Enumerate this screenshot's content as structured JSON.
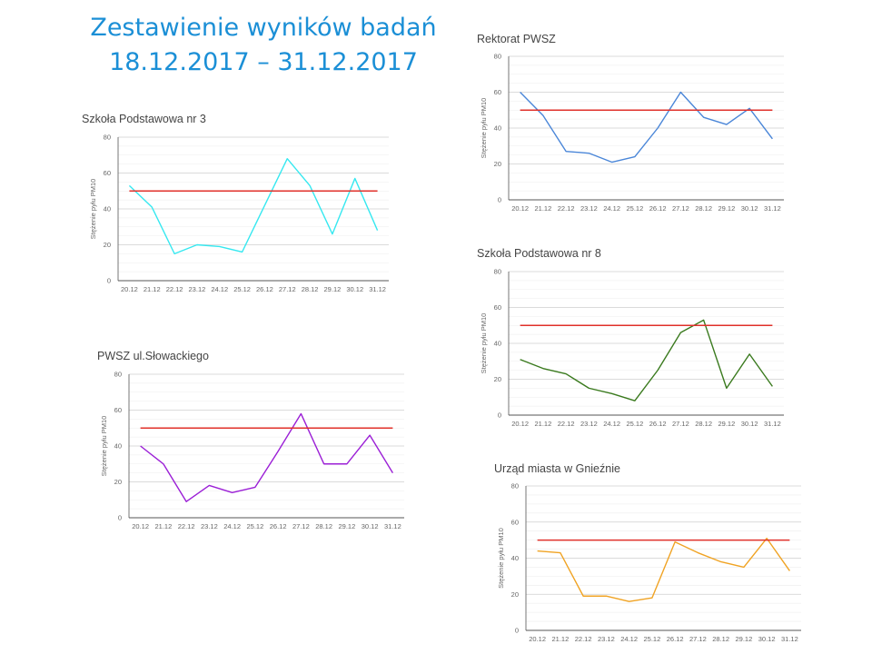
{
  "page": {
    "title_line1": "Zestawienie wyników badań",
    "title_line2": "18.12.2017 – 31.12.2017"
  },
  "chart_data": [
    {
      "type": "line",
      "title": "Szkoła Podstawowa nr 3",
      "ylabel": "Stężenie pyłu PM10",
      "categories": [
        "20.12",
        "21.12",
        "22.12",
        "23.12",
        "24.12",
        "25.12",
        "26.12",
        "27.12",
        "28.12",
        "29.12",
        "30.12",
        "31.12"
      ],
      "yticks": [
        0,
        20,
        40,
        60,
        80
      ],
      "ylim": [
        0,
        80
      ],
      "grid": true,
      "series": [
        {
          "values": [
            53,
            41,
            15,
            20,
            19,
            16,
            42,
            68,
            53,
            26,
            57,
            28
          ],
          "color": "#36e8f0"
        },
        {
          "values": [
            50,
            50,
            50,
            50,
            50,
            50,
            50,
            50,
            50,
            50,
            50,
            50
          ],
          "color": "#e0302a"
        }
      ]
    },
    {
      "type": "line",
      "title": "Rektorat PWSZ",
      "ylabel": "Stężenie pyłu PM10",
      "categories": [
        "20.12",
        "21.12",
        "22.12",
        "23.12",
        "24.12",
        "25.12",
        "26.12",
        "27.12",
        "28.12",
        "29.12",
        "30.12",
        "31.12"
      ],
      "yticks": [
        0,
        20,
        40,
        60,
        80
      ],
      "ylim": [
        0,
        80
      ],
      "grid": true,
      "series": [
        {
          "values": [
            60,
            47,
            27,
            26,
            21,
            24,
            40,
            60,
            46,
            42,
            51,
            34
          ],
          "color": "#4a86d8"
        },
        {
          "values": [
            50,
            50,
            50,
            50,
            50,
            50,
            50,
            50,
            50,
            50,
            50,
            50
          ],
          "color": "#e0302a"
        }
      ]
    },
    {
      "type": "line",
      "title": "Szkoła Podstawowa nr 8",
      "ylabel": "Stężenie pyłu PM10",
      "categories": [
        "20.12",
        "21.12",
        "22.12",
        "23.12",
        "24.12",
        "25.12",
        "26.12",
        "27.12",
        "28.12",
        "29.12",
        "30.12",
        "31.12"
      ],
      "yticks": [
        0,
        20,
        40,
        60,
        80
      ],
      "ylim": [
        0,
        80
      ],
      "grid": true,
      "series": [
        {
          "values": [
            31,
            26,
            23,
            15,
            12,
            8,
            25,
            46,
            53,
            15,
            34,
            16
          ],
          "color": "#3a7a1e"
        },
        {
          "values": [
            50,
            50,
            50,
            50,
            50,
            50,
            50,
            50,
            50,
            50,
            50,
            50
          ],
          "color": "#e0302a"
        }
      ]
    },
    {
      "type": "line",
      "title": "PWSZ ul.Słowackiego",
      "ylabel": "Stężenie pyłu PM10",
      "categories": [
        "20.12",
        "21.12",
        "22.12",
        "23.12",
        "24.12",
        "25.12",
        "26.12",
        "27.12",
        "28.12",
        "29.12",
        "30.12",
        "31.12"
      ],
      "yticks": [
        0,
        20,
        40,
        60,
        80
      ],
      "ylim": [
        0,
        80
      ],
      "grid": true,
      "series": [
        {
          "values": [
            40,
            30,
            9,
            18,
            14,
            17,
            37,
            58,
            30,
            30,
            46,
            25
          ],
          "color": "#9b1fd6"
        },
        {
          "values": [
            50,
            50,
            50,
            50,
            50,
            50,
            50,
            50,
            50,
            50,
            50,
            50
          ],
          "color": "#e0302a"
        }
      ]
    },
    {
      "type": "line",
      "title": "Urząd miasta w Gnieźnie",
      "ylabel": "Stężenie pyłu PM10",
      "categories": [
        "20.12",
        "21.12",
        "22.12",
        "23.12",
        "24.12",
        "25.12",
        "26.12",
        "27.12",
        "28.12",
        "29.12",
        "30.12",
        "31.12"
      ],
      "yticks": [
        0,
        20,
        40,
        60,
        80
      ],
      "ylim": [
        0,
        80
      ],
      "grid": true,
      "series": [
        {
          "values": [
            44,
            43,
            19,
            19,
            16,
            18,
            49,
            43,
            38,
            35,
            51,
            33
          ],
          "color": "#f0a323"
        },
        {
          "values": [
            50,
            50,
            50,
            50,
            50,
            50,
            50,
            50,
            50,
            50,
            50,
            50
          ],
          "color": "#e0302a"
        }
      ]
    }
  ]
}
